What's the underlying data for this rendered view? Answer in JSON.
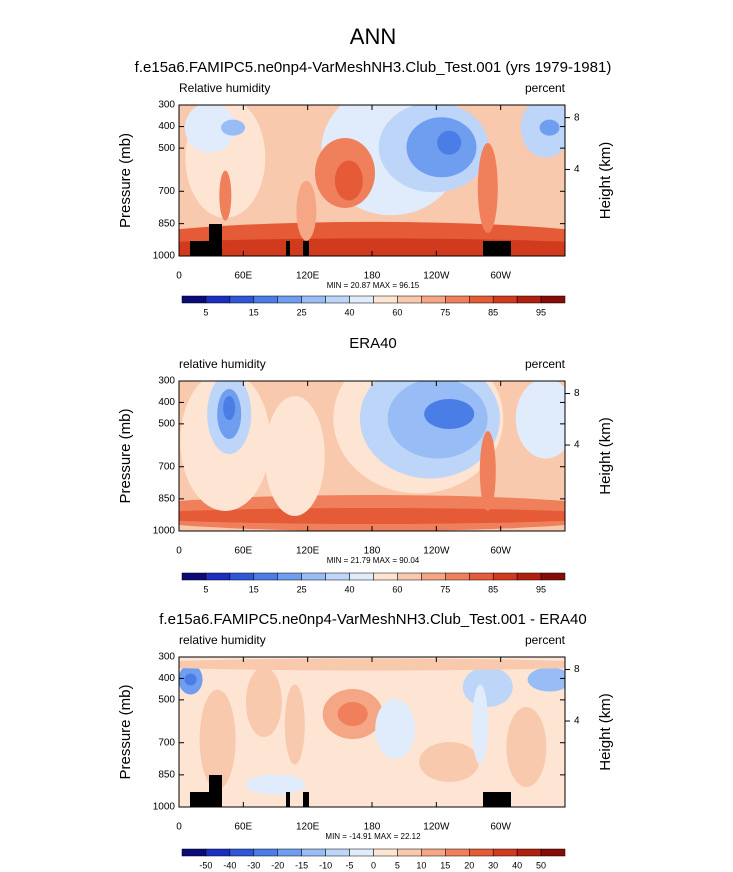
{
  "title": "ANN",
  "chart_data": [
    {
      "type": "contour",
      "title": "f.e15a6.FAMIPC5.ne0np4-VarMeshNH3.Club_Test.001 (yrs 1979-1981)",
      "left_label": "Relative humidity",
      "right_label": "percent",
      "ylabel": "Pressure (mb)",
      "y2label": "Height (km)",
      "ylim": [
        1000,
        300
      ],
      "yticks": [
        300,
        400,
        500,
        700,
        850,
        1000
      ],
      "y2ticks": [
        4,
        8
      ],
      "xlim": [
        0,
        360
      ],
      "xticks": [
        0,
        {
          "value": 60,
          "label": "60E"
        },
        {
          "value": 120,
          "label": "120E"
        },
        180,
        {
          "value": 240,
          "label": "120W"
        },
        {
          "value": 300,
          "label": "60W"
        }
      ],
      "stats": "MIN = 20.87  MAX = 96.15",
      "colorbar": {
        "labels": [
          5,
          15,
          25,
          40,
          60,
          75,
          85,
          95
        ],
        "colors": [
          "#0b0b78",
          "#1a2fbf",
          "#2e57d8",
          "#4a7de6",
          "#6f9def",
          "#98bcf5",
          "#bdd5f8",
          "#e0ebfb",
          "#fde4d3",
          "#f9c9ad",
          "#f5a684",
          "#ef805b",
          "#e55b37",
          "#d03a1d",
          "#b1200e",
          "#860d05"
        ]
      }
    },
    {
      "type": "contour",
      "title": "ERA40",
      "left_label": "relative humidity",
      "right_label": "percent",
      "ylabel": "Pressure (mb)",
      "y2label": "Height (km)",
      "ylim": [
        1000,
        300
      ],
      "yticks": [
        300,
        400,
        500,
        700,
        850,
        1000
      ],
      "y2ticks": [
        4,
        8
      ],
      "xlim": [
        0,
        360
      ],
      "xticks": [
        0,
        {
          "value": 60,
          "label": "60E"
        },
        {
          "value": 120,
          "label": "120E"
        },
        180,
        {
          "value": 240,
          "label": "120W"
        },
        {
          "value": 300,
          "label": "60W"
        }
      ],
      "stats": "MIN = 21.79  MAX = 90.04",
      "colorbar": {
        "labels": [
          5,
          15,
          25,
          40,
          60,
          75,
          85,
          95
        ],
        "colors": [
          "#0b0b78",
          "#1a2fbf",
          "#2e57d8",
          "#4a7de6",
          "#6f9def",
          "#98bcf5",
          "#bdd5f8",
          "#e0ebfb",
          "#fde4d3",
          "#f9c9ad",
          "#f5a684",
          "#ef805b",
          "#e55b37",
          "#d03a1d",
          "#b1200e",
          "#860d05"
        ]
      }
    },
    {
      "type": "contour",
      "title": "f.e15a6.FAMIPC5.ne0np4-VarMeshNH3.Club_Test.001 - ERA40",
      "left_label": "relative humidity",
      "right_label": "percent",
      "ylabel": "Pressure (mb)",
      "y2label": "Height (km)",
      "ylim": [
        1000,
        300
      ],
      "yticks": [
        300,
        400,
        500,
        700,
        850,
        1000
      ],
      "y2ticks": [
        4,
        8
      ],
      "xlim": [
        0,
        360
      ],
      "xticks": [
        0,
        {
          "value": 60,
          "label": "60E"
        },
        {
          "value": 120,
          "label": "120E"
        },
        180,
        {
          "value": 240,
          "label": "120W"
        },
        {
          "value": 300,
          "label": "60W"
        }
      ],
      "stats": "MIN = -14.91  MAX = 22.12",
      "colorbar": {
        "labels": [
          -50,
          -40,
          -30,
          -20,
          -15,
          -10,
          -5,
          0,
          5,
          10,
          15,
          20,
          30,
          40,
          50
        ],
        "colors": [
          "#0b0b78",
          "#1a2fbf",
          "#2e57d8",
          "#4a7de6",
          "#6f9def",
          "#98bcf5",
          "#bdd5f8",
          "#e0ebfb",
          "#fde4d3",
          "#f9c9ad",
          "#f5a684",
          "#ef805b",
          "#e55b37",
          "#d03a1d",
          "#b1200e",
          "#860d05"
        ]
      }
    }
  ]
}
